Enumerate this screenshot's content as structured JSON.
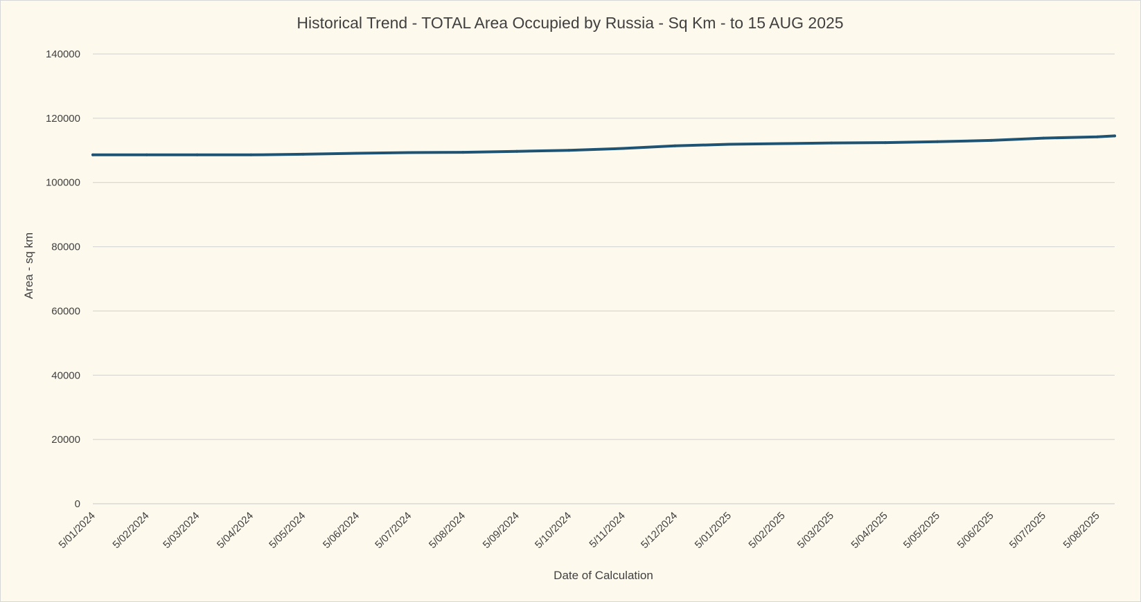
{
  "chart_data": {
    "type": "line",
    "title": "Historical Trend - TOTAL Area Occupied by Russia - Sq Km - to 15 AUG 2025",
    "xlabel": "Date of Calculation",
    "ylabel": "Area - sq km",
    "ylim": [
      0,
      140000
    ],
    "y_ticks": [
      "0",
      "20000",
      "40000",
      "60000",
      "80000",
      "100000",
      "120000",
      "140000"
    ],
    "grid": true,
    "legend": "none",
    "series_color": "#1f5373",
    "x": [
      "5/01/2024",
      "5/02/2024",
      "5/03/2024",
      "5/04/2024",
      "5/05/2024",
      "5/06/2024",
      "5/07/2024",
      "5/08/2024",
      "5/09/2024",
      "5/10/2024",
      "5/11/2024",
      "5/12/2024",
      "5/01/2025",
      "5/02/2025",
      "5/03/2025",
      "5/04/2025",
      "5/05/2025",
      "5/06/2025",
      "5/07/2025",
      "5/08/2025",
      "15/08/2025"
    ],
    "x_tick_labels": [
      "5/01/2024",
      "5/02/2024",
      "5/03/2024",
      "5/04/2024",
      "5/05/2024",
      "5/06/2024",
      "5/07/2024",
      "5/08/2024",
      "5/09/2024",
      "5/10/2024",
      "5/11/2024",
      "5/12/2024",
      "5/01/2025",
      "5/02/2025",
      "5/03/2025",
      "5/04/2025",
      "5/05/2025",
      "5/06/2025",
      "5/07/2025",
      "5/08/2025"
    ],
    "series": [
      {
        "values": [
          108600,
          108600,
          108600,
          108600,
          108800,
          109100,
          109300,
          109400,
          109700,
          110000,
          110600,
          111400,
          111900,
          112100,
          112300,
          112400,
          112700,
          113100,
          113800,
          114200,
          114500
        ]
      }
    ]
  }
}
